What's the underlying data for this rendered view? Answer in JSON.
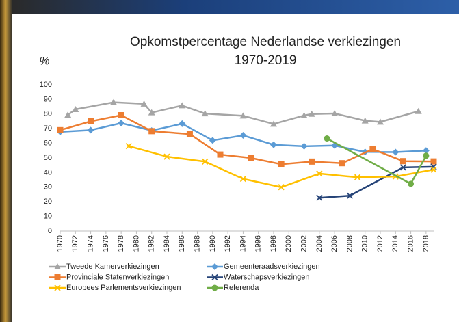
{
  "chart_data": {
    "type": "line",
    "title": [
      "Opkomstpercentage Nederlandse verkiezingen",
      "1970-2019"
    ],
    "ylabel": "%",
    "xlim": [
      1970,
      2019
    ],
    "xticks": [
      1970,
      1972,
      1974,
      1976,
      1978,
      1980,
      1982,
      1984,
      1986,
      1988,
      1990,
      1992,
      1994,
      1996,
      1998,
      2000,
      2002,
      2004,
      2006,
      2008,
      2010,
      2012,
      2014,
      2016,
      2018
    ],
    "ylim": [
      0,
      100
    ],
    "yticks": [
      0,
      10,
      20,
      30,
      40,
      50,
      60,
      70,
      80,
      90,
      100
    ],
    "grid": false,
    "series": [
      {
        "name": "Tweede Kamerverkiezingen",
        "color": "#a5a5a5",
        "marker": "triangle",
        "x": [
          1971,
          1972,
          1977,
          1981,
          1982,
          1986,
          1989,
          1994,
          1998,
          2002,
          2003,
          2006,
          2010,
          2012,
          2017
        ],
        "values": [
          79.4,
          83.2,
          88,
          87,
          81,
          85.8,
          80.3,
          78.8,
          73.2,
          79,
          80,
          80.4,
          75.4,
          74.6,
          81.9
        ]
      },
      {
        "name": "Gemeenteraadsverkiezingen",
        "color": "#5b9bd5",
        "marker": "diamond",
        "x": [
          1970,
          1974,
          1978,
          1982,
          1986,
          1990,
          1994,
          1998,
          2002,
          2006,
          2010,
          2014,
          2018
        ],
        "values": [
          67.8,
          69,
          73.8,
          68.7,
          73.4,
          62,
          65.4,
          59,
          58,
          58.5,
          54.1,
          54,
          55
        ]
      },
      {
        "name": "Provinciale Statenverkiezingen",
        "color": "#ed7d31",
        "marker": "square",
        "x": [
          1970,
          1974,
          1978,
          1982,
          1987,
          1991,
          1995,
          1999,
          2003,
          2007,
          2011,
          2015,
          2019
        ],
        "values": [
          69,
          75,
          79.2,
          68.3,
          66.3,
          52.3,
          50,
          45.7,
          47.5,
          46.4,
          56,
          47.8,
          47.6
        ]
      },
      {
        "name": "Waterschapsverkiezingen",
        "color": "#264478",
        "marker": "x",
        "x": [
          2004,
          2008,
          2015,
          2019
        ],
        "values": [
          22.8,
          24.2,
          43.5,
          44
        ]
      },
      {
        "name": "Europees Parlementsverkiezingen",
        "color": "#ffc000",
        "marker": "x",
        "x": [
          1979,
          1984,
          1989,
          1994,
          1999,
          2004,
          2009,
          2014,
          2019
        ],
        "values": [
          58.1,
          50.9,
          47.5,
          35.7,
          30,
          39.3,
          36.8,
          37.3,
          42
        ]
      },
      {
        "name": "Referenda",
        "color": "#70ad47",
        "marker": "circle",
        "x": [
          2005,
          2016,
          2018
        ],
        "values": [
          63.3,
          32.3,
          51.5
        ]
      }
    ]
  }
}
